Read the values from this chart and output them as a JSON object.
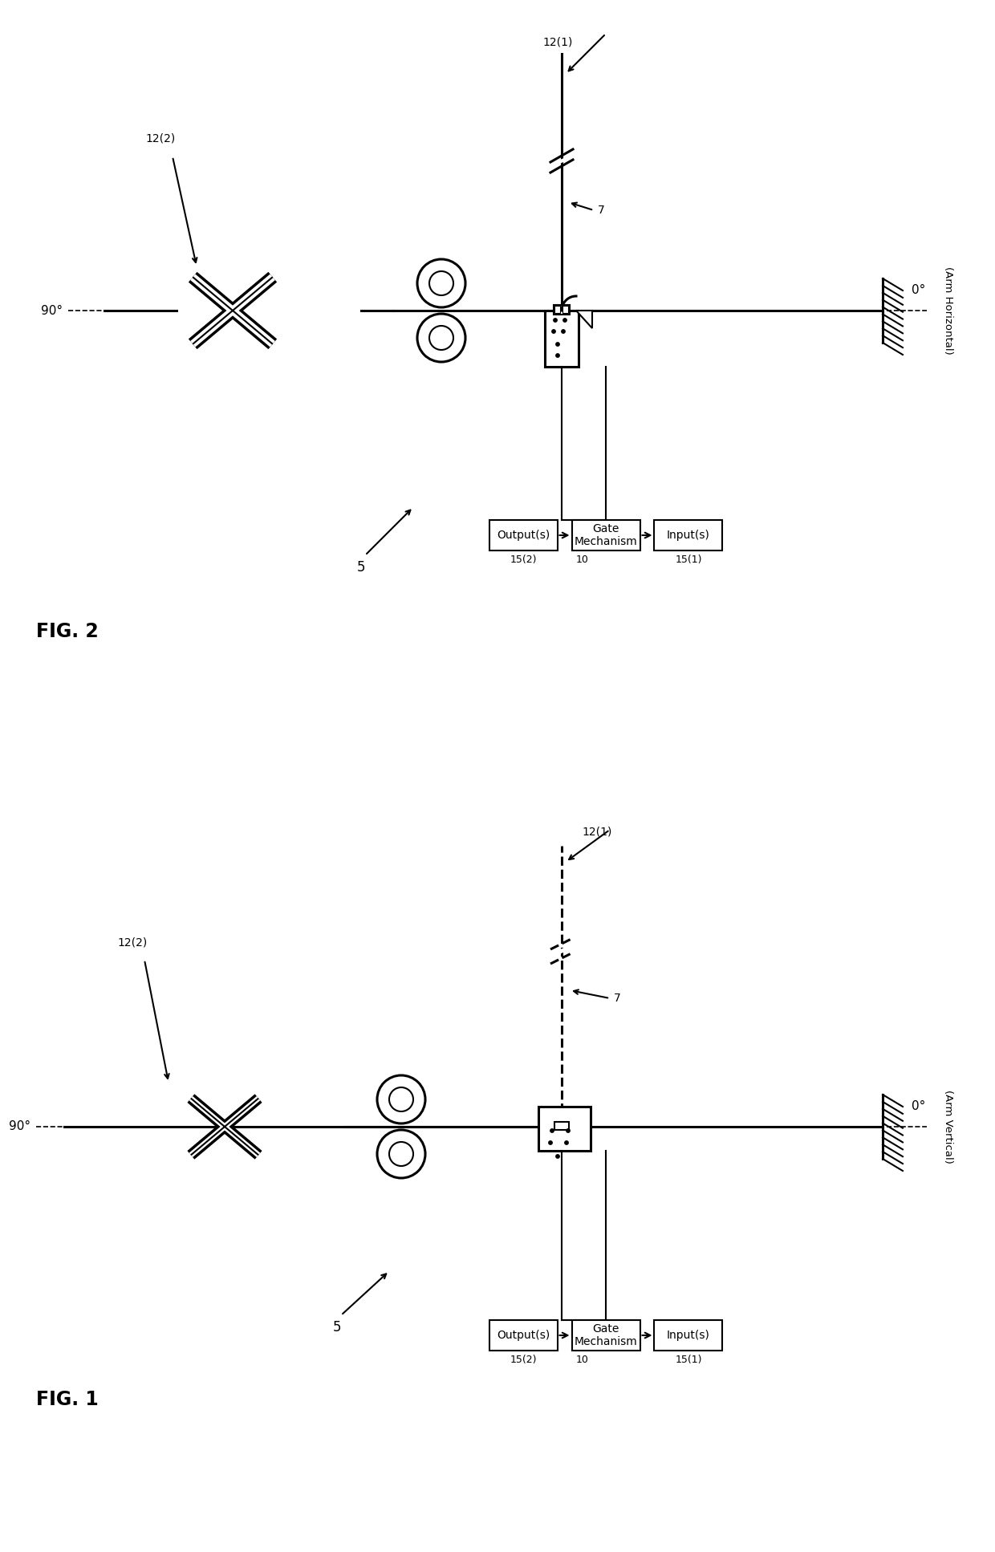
{
  "fig_width": 12.4,
  "fig_height": 19.34,
  "background_color": "#ffffff",
  "line_color": "#000000",
  "fig1_label": "FIG. 1",
  "fig2_label": "FIG. 2",
  "label_5": "5",
  "label_7": "7",
  "label_10": "10",
  "label_12_1": "12(1)",
  "label_12_2": "12(2)",
  "label_15_1": "15(1)",
  "label_15_2": "15(2)",
  "label_0deg": "0°",
  "label_90deg": "90°",
  "label_arm_horiz": "(Arm Horizontal)",
  "label_arm_vert": "(Arm Vertical)",
  "label_gate_mech": "Gate\nMechanism",
  "label_outputs": "Output(s)",
  "label_inputs": "Input(s)"
}
